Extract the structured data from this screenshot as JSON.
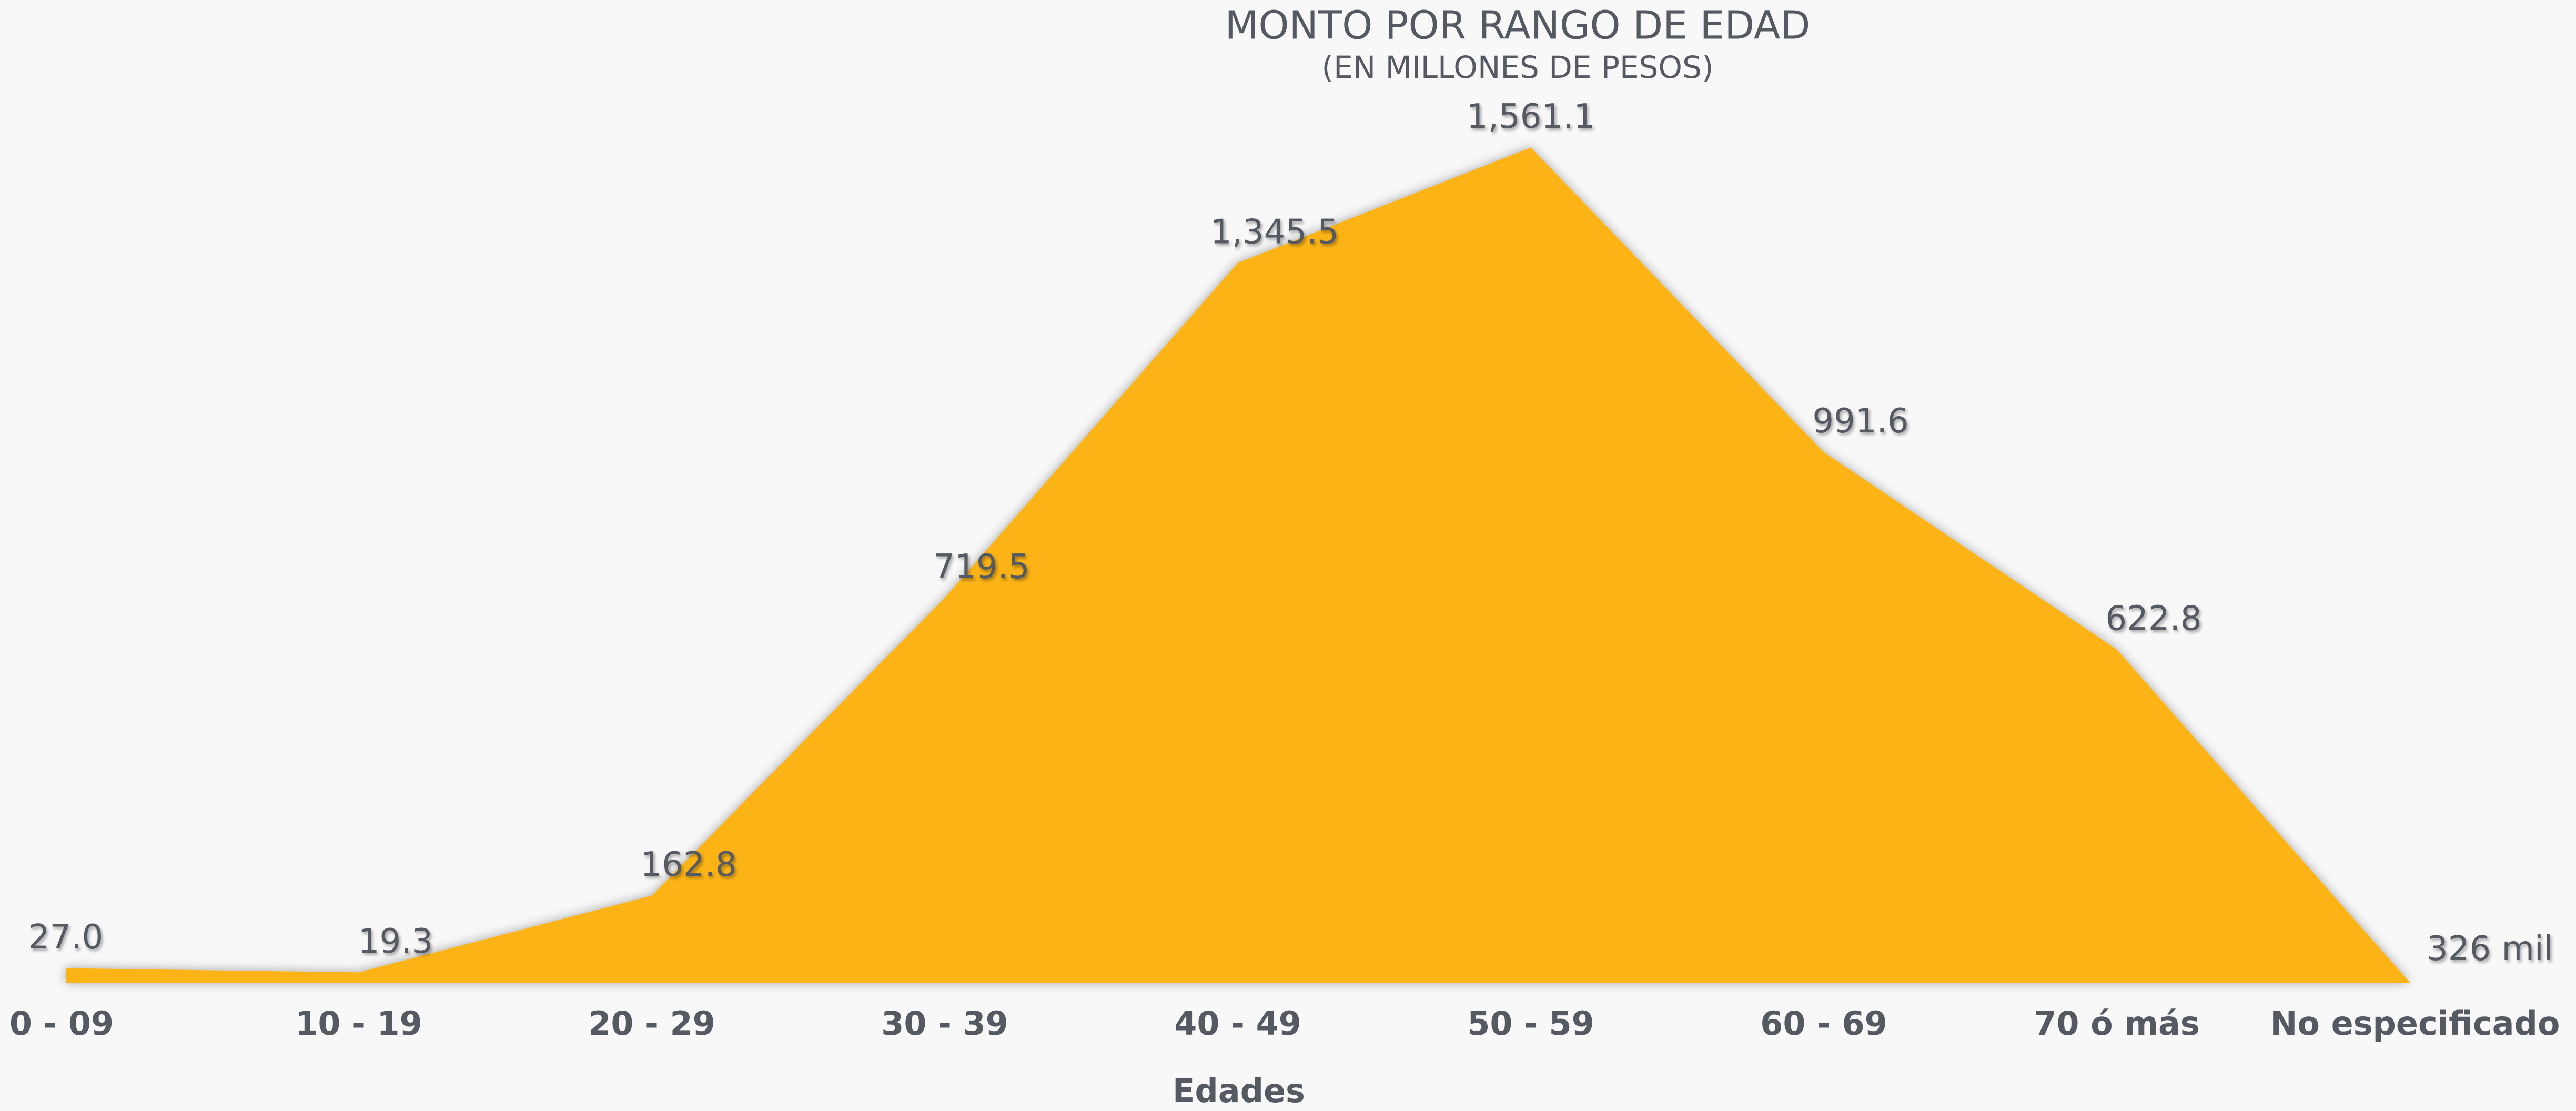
{
  "chart_data": {
    "type": "area",
    "title": "MONTO POR RANGO DE EDAD",
    "subtitle": "(EN MILLONES DE PESOS)",
    "x_label": "Edades",
    "categories": [
      "0 - 09",
      "10 - 19",
      "20 - 29",
      "30 - 39",
      "40 - 49",
      "50 - 59",
      "60 - 69",
      "70 ó más",
      "No especificado"
    ],
    "values": [
      27.0,
      19.3,
      162.8,
      719.5,
      1345.5,
      1561.1,
      991.6,
      622.8,
      0.326
    ],
    "value_labels": [
      "27.0",
      "19.3",
      "162.8",
      "719.5",
      "1,345.5",
      "1,561.1",
      "991.6",
      "622.8",
      "326 mil"
    ],
    "color": "#fbb313",
    "ylim": [
      0,
      1600
    ]
  }
}
